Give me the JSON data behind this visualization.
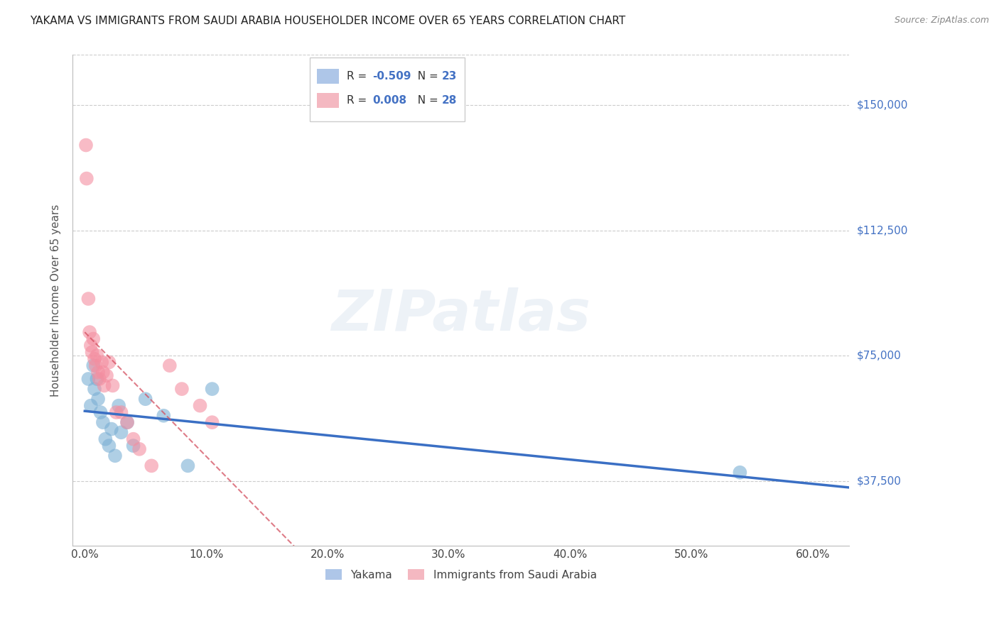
{
  "title": "YAKAMA VS IMMIGRANTS FROM SAUDI ARABIA HOUSEHOLDER INCOME OVER 65 YEARS CORRELATION CHART",
  "source": "Source: ZipAtlas.com",
  "ylabel": "Householder Income Over 65 years",
  "xlabel_ticks": [
    "0.0%",
    "10.0%",
    "20.0%",
    "30.0%",
    "40.0%",
    "50.0%",
    "60.0%"
  ],
  "xlabel_tick_vals": [
    0,
    10,
    20,
    30,
    40,
    50,
    60
  ],
  "ytick_labels": [
    "$37,500",
    "$75,000",
    "$112,500",
    "$150,000"
  ],
  "ytick_vals": [
    37500,
    75000,
    112500,
    150000
  ],
  "xlim": [
    -1,
    63
  ],
  "ylim": [
    18000,
    165000
  ],
  "watermark": "ZIPatlas",
  "yakama_x": [
    0.3,
    0.5,
    0.7,
    0.8,
    1.0,
    1.1,
    1.3,
    1.5,
    1.7,
    2.0,
    2.2,
    2.5,
    2.8,
    3.0,
    3.5,
    4.0,
    5.0,
    6.5,
    8.5,
    10.5,
    54.0
  ],
  "yakama_y": [
    68000,
    60000,
    72000,
    65000,
    68000,
    62000,
    58000,
    55000,
    50000,
    48000,
    53000,
    45000,
    60000,
    52000,
    55000,
    48000,
    62000,
    57000,
    42000,
    65000,
    40000
  ],
  "saudi_x": [
    0.1,
    0.15,
    0.3,
    0.4,
    0.5,
    0.6,
    0.7,
    0.8,
    0.9,
    1.0,
    1.1,
    1.2,
    1.4,
    1.5,
    1.6,
    1.8,
    2.0,
    2.3,
    2.6,
    3.0,
    3.5,
    4.0,
    4.5,
    5.5,
    7.0,
    8.0,
    9.5,
    10.5
  ],
  "saudi_y": [
    138000,
    128000,
    92000,
    82000,
    78000,
    76000,
    80000,
    74000,
    72000,
    75000,
    70000,
    68000,
    73000,
    70000,
    66000,
    69000,
    73000,
    66000,
    58000,
    58000,
    55000,
    50000,
    47000,
    42000,
    72000,
    65000,
    60000,
    55000
  ],
  "yakama_color": "#7bafd4",
  "saudi_color": "#f48ea0",
  "yakama_alpha": 0.6,
  "saudi_alpha": 0.6,
  "trendline_yakama_color": "#3a6fc4",
  "trendline_saudi_color": "#d45060",
  "grid_color": "#cccccc",
  "background_color": "#ffffff",
  "title_color": "#222222",
  "axis_color": "#bbbbbb",
  "right_label_color": "#4472c4"
}
